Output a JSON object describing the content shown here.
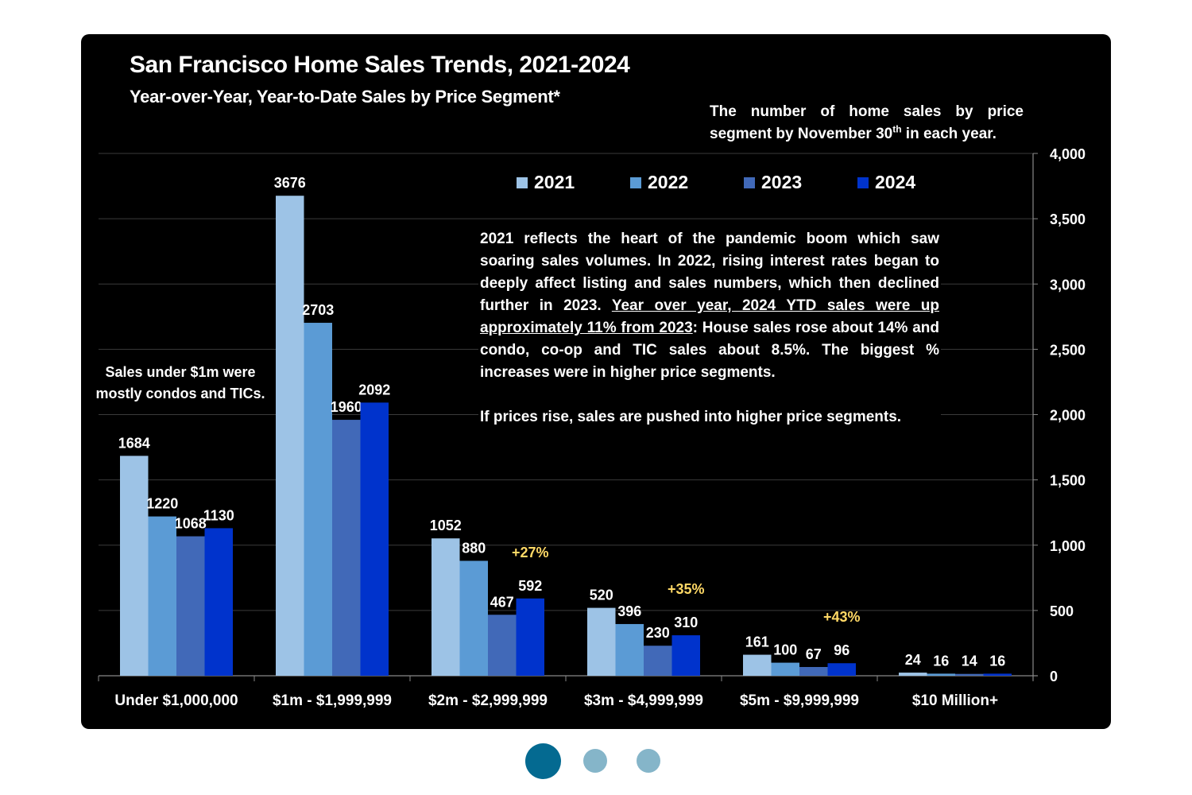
{
  "chart_data": {
    "type": "bar",
    "title": "San Francisco Home Sales Trends, 2021-2024",
    "subtitle": "Year-over-Year, Year-to-Date Sales by Price Segment*",
    "xlabel": "",
    "ylabel": "",
    "ylim": [
      0,
      4000
    ],
    "yticks": [
      0,
      500,
      1000,
      1500,
      2000,
      2500,
      3000,
      3500,
      4000
    ],
    "ytick_labels": [
      "0",
      "500",
      "1,000",
      "1,500",
      "2,000",
      "2,500",
      "3,000",
      "3,500",
      "4,000"
    ],
    "y_axis_side": "right",
    "grid": true,
    "legend_position": "top-center",
    "categories": [
      "Under $1,000,000",
      "$1m - $1,999,999",
      "$2m - $2,999,999",
      "$3m - $4,999,999",
      "$5m - $9,999,999",
      "$10 Million+"
    ],
    "series": [
      {
        "name": "2021",
        "color": "#9dc3e6",
        "values": [
          1684,
          3676,
          1052,
          520,
          161,
          24
        ]
      },
      {
        "name": "2022",
        "color": "#5b9bd5",
        "values": [
          1220,
          2703,
          880,
          396,
          100,
          16
        ]
      },
      {
        "name": "2023",
        "color": "#4169b8",
        "values": [
          1068,
          1960,
          467,
          230,
          67,
          14
        ]
      },
      {
        "name": "2024",
        "color": "#0033cc",
        "values": [
          1130,
          2092,
          592,
          310,
          96,
          16
        ]
      }
    ],
    "change_labels": [
      {
        "category_index": 2,
        "text": "+27%",
        "color": "#ffd966"
      },
      {
        "category_index": 3,
        "text": "+35%",
        "color": "#ffd966"
      },
      {
        "category_index": 4,
        "text": "+43%",
        "color": "#ffd966"
      }
    ]
  },
  "notes": {
    "top_right_line1": "The number of home sales by price segment by November 30",
    "top_right_sup": "th",
    "top_right_line2": " in each year.",
    "left": "Sales under $1m were mostly condos and TICs.",
    "annotation_part1": "2021 reflects the heart of the pandemic boom which saw soaring sales volumes. In 2022, rising interest rates began to deeply affect listing and sales numbers, which then declined further in 2023. ",
    "annotation_underlined": "Year over year, 2024 YTD sales were up approximately 11% from 2023",
    "annotation_part2": ": House sales rose about 14% and condo, co-op and TIC sales about 8.5%. The biggest % increases were in higher price segments.",
    "annotation_para2": "If prices rise, sales are pushed into higher price segments."
  },
  "carousel": {
    "slide_count": 3,
    "active_index": 0,
    "active_color": "#046a91",
    "inactive_color": "#85b5c9"
  }
}
